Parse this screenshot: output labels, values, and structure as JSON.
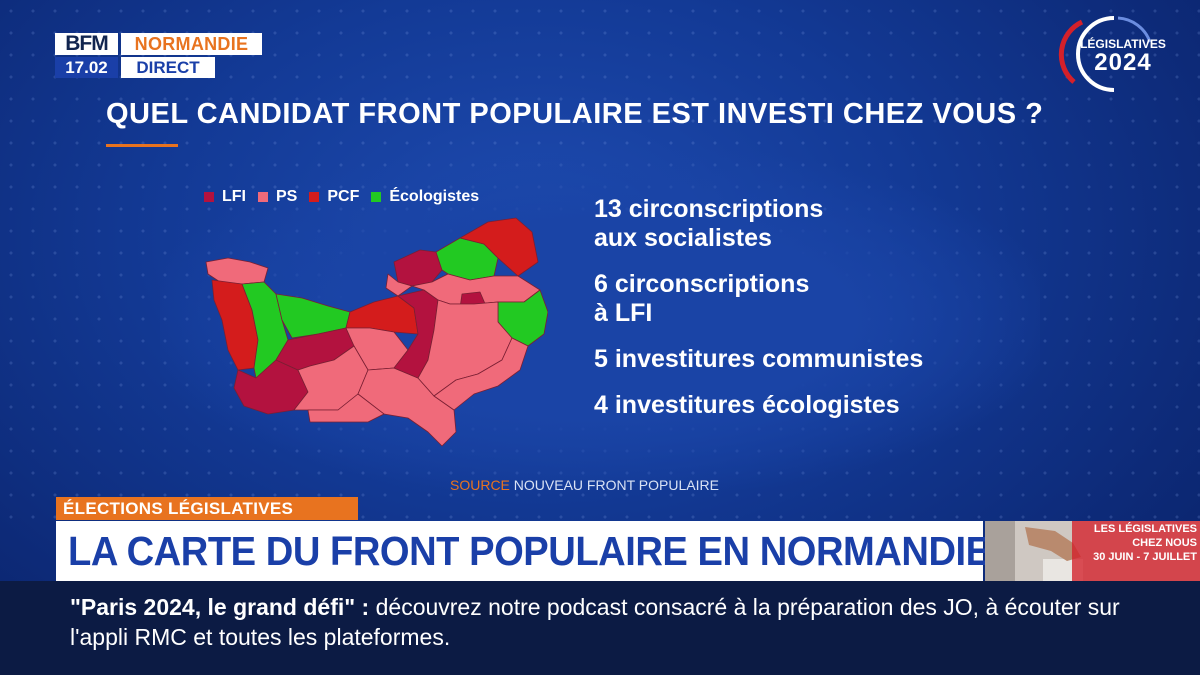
{
  "channel": {
    "logo": "BFM",
    "region": "NORMANDIE",
    "time": "17.02",
    "live_label": "DIRECT"
  },
  "badge": {
    "label": "LÉGISLATIVES",
    "year": "2024"
  },
  "graphic": {
    "title": "QUEL CANDIDAT FRONT POPULAIRE EST INVESTI CHEZ VOUS ?",
    "legend": [
      {
        "label": "LFI",
        "color": "#b3123f"
      },
      {
        "label": "PS",
        "color": "#f06a7a"
      },
      {
        "label": "PCF",
        "color": "#d41c1c"
      },
      {
        "label": "Écologistes",
        "color": "#22c922"
      }
    ],
    "stats": [
      {
        "line1": "13 circonscriptions",
        "line2": "aux socialistes"
      },
      {
        "line1": "6 circonscriptions",
        "line2": "à LFI"
      },
      {
        "line1": "5 investitures communistes",
        "line2": ""
      },
      {
        "line1": "4 investitures écologistes",
        "line2": ""
      }
    ],
    "source_key": "SOURCE",
    "source_value": "NOUVEAU FRONT POPULAIRE"
  },
  "lower_third": {
    "tag": "ÉLECTIONS LÉGISLATIVES",
    "headline": "LA CARTE DU FRONT POPULAIRE EN NORMANDIE",
    "promo_line1": "LES LÉGISLATIVES",
    "promo_line2": "CHEZ NOUS",
    "promo_line3": "30 JUIN - 7 JUILLET"
  },
  "ticker": {
    "lead": "\"Paris 2024, le grand défi\"",
    "separator": ":",
    "text": "découvrez notre podcast consacré à la préparation des JO, à écouter sur l'appli RMC et toutes les plateformes."
  },
  "colors": {
    "accent": "#e8731f",
    "brand_blue": "#1a3fa8"
  }
}
